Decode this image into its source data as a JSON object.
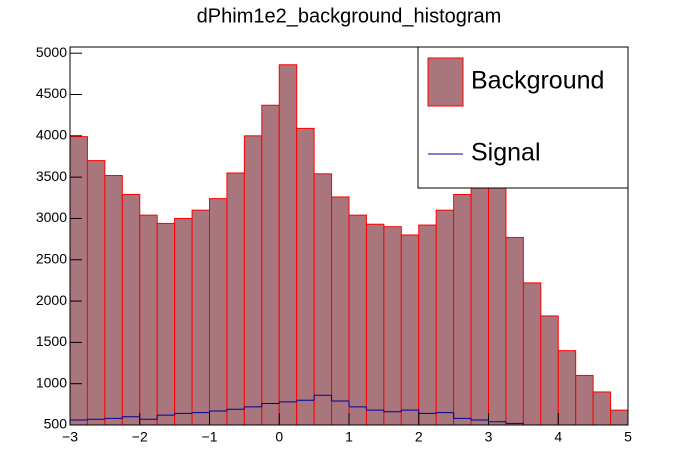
{
  "chart_data": {
    "type": "histogram",
    "title": "dPhim1e2_background_histogram",
    "bins": [
      -3,
      -2.75,
      -2.5,
      -2.25,
      -2,
      -1.75,
      -1.5,
      -1.25,
      -1,
      -0.75,
      -0.5,
      -0.25,
      0,
      0.25,
      0.5,
      0.75,
      1,
      1.25,
      1.5,
      1.75,
      2,
      2.25,
      2.5,
      2.75,
      3,
      3.25,
      3.5,
      3.75,
      4,
      4.25,
      4.5,
      4.75,
      5
    ],
    "series": [
      {
        "name": "Background",
        "style": "fill",
        "color": "#a8767c",
        "edge_color": "#ff0000",
        "values": [
          3990,
          3700,
          3520,
          3290,
          3040,
          2940,
          3000,
          3100,
          3240,
          3550,
          4000,
          4370,
          4860,
          4090,
          3540,
          3260,
          3040,
          2930,
          2900,
          2800,
          2920,
          3100,
          3290,
          3450,
          3560,
          2770,
          2220,
          1820,
          1400,
          1100,
          900,
          680
        ]
      },
      {
        "name": "Signal",
        "style": "line",
        "color": "#000099",
        "values": [
          560,
          570,
          580,
          600,
          570,
          620,
          640,
          650,
          670,
          690,
          720,
          760,
          780,
          800,
          860,
          790,
          720,
          680,
          660,
          680,
          640,
          650,
          580,
          560,
          540,
          520,
          500,
          490,
          480,
          470,
          460,
          450
        ]
      }
    ],
    "xlim": [
      -3,
      5
    ],
    "xticks": [
      {
        "value": -3,
        "label": "−3"
      },
      {
        "value": -2,
        "label": "−2"
      },
      {
        "value": -1,
        "label": "−1"
      },
      0,
      1,
      2,
      3,
      4,
      5
    ],
    "ylim": [
      500,
      5075
    ],
    "yticks": [
      500,
      1000,
      1500,
      2000,
      2500,
      3000,
      3500,
      4000,
      4500,
      5000
    ],
    "legend": "top-right"
  }
}
